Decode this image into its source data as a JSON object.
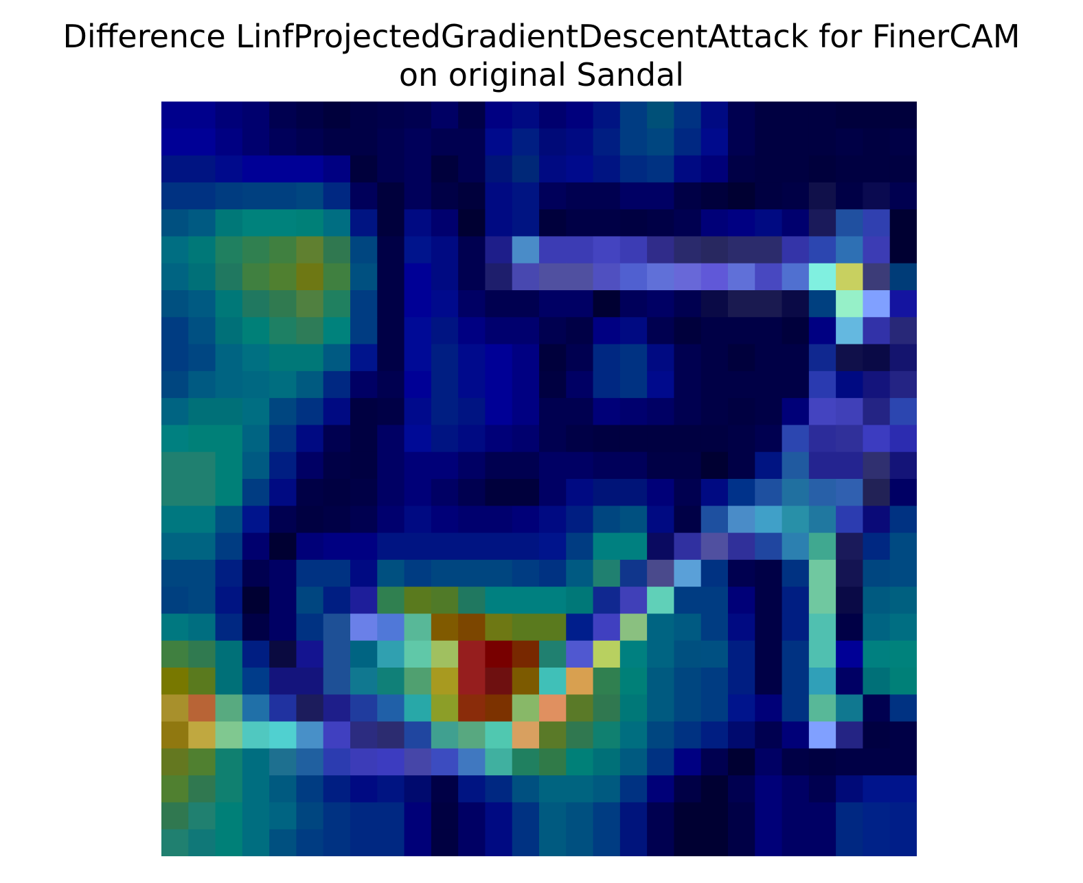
{
  "chart_data": {
    "type": "heatmap",
    "title_lines": [
      "Difference LinfProjectedGradientDescentAttack for FinerCAM",
      "on original Sandal"
    ],
    "xlabel": "",
    "ylabel": "",
    "axes_visible": false,
    "grid": false,
    "rows": 28,
    "cols": 28,
    "cell_colors": [
      [
        "#00008c",
        "#00008c",
        "#000078",
        "#00006e",
        "#000050",
        "#000046",
        "#00003c",
        "#000046",
        "#00004b",
        "#000050",
        "#000064",
        "#000046",
        "#000082",
        "#000a82",
        "#00006e",
        "#00007d",
        "#001482",
        "#003c82",
        "#005078",
        "#003282",
        "#000a82",
        "#000050",
        "#000041",
        "#000041",
        "#000041",
        "#00003c",
        "#00003c",
        "#00003c"
      ],
      [
        "#000096",
        "#000096",
        "#000082",
        "#00006e",
        "#00005a",
        "#000050",
        "#000046",
        "#000046",
        "#000050",
        "#00005a",
        "#000050",
        "#000050",
        "#000a8c",
        "#001e82",
        "#000a78",
        "#000a82",
        "#001e82",
        "#003c82",
        "#004680",
        "#002882",
        "#000a8c",
        "#000050",
        "#000041",
        "#000041",
        "#000041",
        "#000046",
        "#000041",
        "#000046"
      ],
      [
        "#001482",
        "#001482",
        "#000a8c",
        "#000096",
        "#000096",
        "#000096",
        "#000082",
        "#00003c",
        "#000050",
        "#00005a",
        "#00003c",
        "#000050",
        "#001478",
        "#002878",
        "#000a82",
        "#000a8c",
        "#001482",
        "#002a82",
        "#003282",
        "#000a82",
        "#000078",
        "#000046",
        "#000041",
        "#000041",
        "#00003c",
        "#000041",
        "#000041",
        "#000041"
      ],
      [
        "#003282",
        "#003282",
        "#003c80",
        "#004080",
        "#004080",
        "#004680",
        "#002882",
        "#00005a",
        "#00003c",
        "#00005a",
        "#000046",
        "#00003c",
        "#000a82",
        "#001482",
        "#00005a",
        "#000050",
        "#000050",
        "#000064",
        "#000064",
        "#000046",
        "#00003c",
        "#000032",
        "#000041",
        "#000046",
        "#10104a",
        "#000046",
        "#0a0a50",
        "#000050"
      ],
      [
        "#005080",
        "#005a82",
        "#007878",
        "#00827c",
        "#00827c",
        "#008078",
        "#006e82",
        "#001482",
        "#00003c",
        "#000a82",
        "#00006e",
        "#000032",
        "#000a82",
        "#001482",
        "#00003c",
        "#000046",
        "#000046",
        "#000041",
        "#000046",
        "#000050",
        "#000078",
        "#000082",
        "#000a82",
        "#00006e",
        "#1a1a5a",
        "#2050a0",
        "#3040b0",
        "#000032"
      ],
      [
        "#006e82",
        "#007878",
        "#208060",
        "#308050",
        "#408040",
        "#608030",
        "#307850",
        "#004680",
        "#000046",
        "#00148c",
        "#000a82",
        "#000050",
        "#1e1e8a",
        "#4a8cc8",
        "#3c3cb4",
        "#3c3cb4",
        "#4444c0",
        "#3c3cb4",
        "#302c8a",
        "#2a2a6c",
        "#282860",
        "#2c2c6c",
        "#2c2c6c",
        "#3434a8",
        "#2c46b0",
        "#2e70b4",
        "#3c3cb4",
        "#000032"
      ],
      [
        "#006482",
        "#007078",
        "#207860",
        "#408040",
        "#508030",
        "#6e7814",
        "#408040",
        "#005080",
        "#000046",
        "#000096",
        "#000a82",
        "#000050",
        "#1e1e6c",
        "#4848b0",
        "#5050a0",
        "#5050a0",
        "#5050c0",
        "#5060d0",
        "#6070d8",
        "#6868d8",
        "#6058d8",
        "#6070d8",
        "#4848c0",
        "#5070d0",
        "#80f0e0",
        "#c8d060",
        "#3c3c78",
        "#003c78"
      ],
      [
        "#005080",
        "#005a82",
        "#007878",
        "#207860",
        "#307a50",
        "#508040",
        "#208060",
        "#003c82",
        "#000046",
        "#000096",
        "#000a8c",
        "#000064",
        "#000050",
        "#000050",
        "#000064",
        "#000064",
        "#000032",
        "#00005a",
        "#000064",
        "#000050",
        "#0a0a46",
        "#1a1a50",
        "#1a1a50",
        "#0a0a46",
        "#004080",
        "#96f0c8",
        "#80a0ff",
        "#1414a0"
      ],
      [
        "#003c82",
        "#005082",
        "#007078",
        "#008078",
        "#1e8064",
        "#2e7c58",
        "#00827c",
        "#003c82",
        "#000046",
        "#000a96",
        "#001482",
        "#000082",
        "#00006e",
        "#00006e",
        "#000050",
        "#000046",
        "#000082",
        "#000a82",
        "#000050",
        "#00003c",
        "#000046",
        "#000046",
        "#000046",
        "#00003c",
        "#000082",
        "#64b8e0",
        "#3232a8",
        "#282878"
      ],
      [
        "#003c82",
        "#004682",
        "#006482",
        "#007082",
        "#007878",
        "#007878",
        "#005a82",
        "#00148c",
        "#000046",
        "#000a96",
        "#001e82",
        "#000a8c",
        "#000096",
        "#000082",
        "#00003c",
        "#000050",
        "#002882",
        "#003282",
        "#000a82",
        "#000050",
        "#000046",
        "#00003c",
        "#000046",
        "#000046",
        "#102890",
        "#10104a",
        "#0a0a46",
        "#14146e"
      ],
      [
        "#004680",
        "#005a82",
        "#006482",
        "#006882",
        "#006e80",
        "#005a80",
        "#002882",
        "#000064",
        "#000050",
        "#000096",
        "#001e82",
        "#000a8c",
        "#000096",
        "#000082",
        "#000041",
        "#000064",
        "#002882",
        "#003282",
        "#000a8c",
        "#000050",
        "#000046",
        "#000046",
        "#000046",
        "#000046",
        "#2a3ab0",
        "#000a82",
        "#14147c",
        "#242484"
      ],
      [
        "#006482",
        "#007078",
        "#007078",
        "#006e82",
        "#004680",
        "#003282",
        "#000a82",
        "#000041",
        "#000046",
        "#000a8c",
        "#001e82",
        "#001482",
        "#000096",
        "#000082",
        "#000050",
        "#000050",
        "#000078",
        "#00006e",
        "#000064",
        "#000050",
        "#000046",
        "#000041",
        "#000046",
        "#000078",
        "#4444c0",
        "#4040b8",
        "#242484",
        "#2c46b0"
      ],
      [
        "#008080",
        "#008078",
        "#008078",
        "#006482",
        "#003282",
        "#000a82",
        "#000050",
        "#000041",
        "#000064",
        "#000a96",
        "#001482",
        "#000a82",
        "#000078",
        "#00006e",
        "#000050",
        "#000046",
        "#000041",
        "#000041",
        "#000041",
        "#000041",
        "#000041",
        "#000046",
        "#000050",
        "#2c46b0",
        "#2c2c9a",
        "#30309a",
        "#3c3cc0",
        "#2c2cb0"
      ],
      [
        "#208070",
        "#208070",
        "#008078",
        "#005a82",
        "#001e82",
        "#000064",
        "#000046",
        "#000041",
        "#000064",
        "#000078",
        "#000078",
        "#000064",
        "#000050",
        "#000050",
        "#000064",
        "#000064",
        "#00005a",
        "#00005a",
        "#000046",
        "#000046",
        "#000032",
        "#000046",
        "#001482",
        "#205aa0",
        "#242490",
        "#242490",
        "#303070",
        "#141478"
      ],
      [
        "#208070",
        "#208070",
        "#008078",
        "#003c82",
        "#000a82",
        "#000046",
        "#000041",
        "#000046",
        "#000064",
        "#000078",
        "#000064",
        "#000050",
        "#00003c",
        "#00003c",
        "#000064",
        "#000a82",
        "#001478",
        "#001478",
        "#000078",
        "#000050",
        "#000a82",
        "#00328a",
        "#1e50a0",
        "#2070a0",
        "#2860a8",
        "#3060b0",
        "#222256",
        "#000064"
      ],
      [
        "#007880",
        "#007880",
        "#005082",
        "#00148c",
        "#000050",
        "#000041",
        "#000046",
        "#000050",
        "#00006e",
        "#000a82",
        "#000078",
        "#00006e",
        "#00006e",
        "#000078",
        "#000a82",
        "#001e82",
        "#004680",
        "#005080",
        "#000a82",
        "#000046",
        "#1e50a0",
        "#4a8cc8",
        "#40a0c8",
        "#2890a8",
        "#2078a0",
        "#2c3cb0",
        "#0a0a78",
        "#003282"
      ],
      [
        "#006482",
        "#006482",
        "#003c82",
        "#00006e",
        "#000032",
        "#000078",
        "#000082",
        "#000082",
        "#001482",
        "#001482",
        "#001482",
        "#001482",
        "#001482",
        "#001482",
        "#00148c",
        "#003c82",
        "#008080",
        "#008080",
        "#0a0a60",
        "#3030a0",
        "#5050a0",
        "#30309a",
        "#2046a0",
        "#2c80b0",
        "#40a890",
        "#1a1a5a",
        "#002882",
        "#004a82"
      ],
      [
        "#004680",
        "#004680",
        "#001e82",
        "#000050",
        "#000064",
        "#003282",
        "#003282",
        "#000a82",
        "#005080",
        "#003c82",
        "#004680",
        "#004680",
        "#004680",
        "#003c82",
        "#003282",
        "#005a82",
        "#208070",
        "#10368c",
        "#4a4a8c",
        "#5aa0d8",
        "#003282",
        "#000050",
        "#000046",
        "#003282",
        "#70c8a0",
        "#141452",
        "#004680",
        "#004a82"
      ],
      [
        "#004080",
        "#004680",
        "#001482",
        "#000032",
        "#000064",
        "#004680",
        "#001e82",
        "#1e1e9a",
        "#308050",
        "#5a7a1e",
        "#507a28",
        "#207860",
        "#008080",
        "#008080",
        "#008080",
        "#007878",
        "#102890",
        "#4040b8",
        "#60d0b8",
        "#003c82",
        "#003c82",
        "#000078",
        "#000046",
        "#001e82",
        "#70c8a0",
        "#0a0a46",
        "#005a80",
        "#006080"
      ],
      [
        "#007880",
        "#006e80",
        "#002882",
        "#000046",
        "#000064",
        "#003282",
        "#1e5096",
        "#6a80e8",
        "#5078d8",
        "#58b898",
        "#805a00",
        "#7c4600",
        "#6e7814",
        "#5a7a1e",
        "#5a7a1e",
        "#001e8c",
        "#4040c0",
        "#8ac080",
        "#006482",
        "#005a82",
        "#003c82",
        "#000a82",
        "#000046",
        "#001e82",
        "#50c0b0",
        "#000046",
        "#006482",
        "#006e82"
      ],
      [
        "#408040",
        "#307a50",
        "#007078",
        "#001e82",
        "#0a0a40",
        "#141490",
        "#1e5096",
        "#006482",
        "#30a0b0",
        "#60c8a8",
        "#a0c060",
        "#961e1e",
        "#780000",
        "#782800",
        "#208070",
        "#5058d0",
        "#b8d060",
        "#008080",
        "#006482",
        "#005080",
        "#005082",
        "#001e82",
        "#000046",
        "#003282",
        "#50c0b0",
        "#000096",
        "#008080",
        "#00827c"
      ],
      [
        "#787800",
        "#5a7a1e",
        "#007078",
        "#003c8a",
        "#14147c",
        "#14147c",
        "#1e5096",
        "#107890",
        "#108078",
        "#50a070",
        "#a89a20",
        "#961e1e",
        "#6e1010",
        "#7c5a00",
        "#40c0b8",
        "#d8a050",
        "#308050",
        "#008078",
        "#005a80",
        "#004680",
        "#003c82",
        "#001e82",
        "#000046",
        "#003282",
        "#30a0b8",
        "#000064",
        "#007078",
        "#008078"
      ],
      [
        "#a8902c",
        "#b86436",
        "#58aa80",
        "#2070a8",
        "#2032a0",
        "#1c1c5c",
        "#1e1e8a",
        "#203c9e",
        "#2060a8",
        "#28a8a8",
        "#8c9e28",
        "#8a2c0a",
        "#7c3200",
        "#88b868",
        "#e09060",
        "#5a7a28",
        "#307850",
        "#007878",
        "#005a80",
        "#004680",
        "#003c82",
        "#00148c",
        "#000078",
        "#003282",
        "#58b898",
        "#107890",
        "#000050",
        "#003282"
      ],
      [
        "#907810",
        "#c0a840",
        "#80c890",
        "#50c8c0",
        "#50d0d0",
        "#4890c8",
        "#4040c0",
        "#2c2c80",
        "#2c2c70",
        "#2046a0",
        "#40a090",
        "#58a880",
        "#50c8b0",
        "#d8a060",
        "#5a7a28",
        "#307850",
        "#108070",
        "#006e80",
        "#004680",
        "#003282",
        "#001e82",
        "#000a6e",
        "#000050",
        "#000078",
        "#80a0ff",
        "#242484",
        "#000041",
        "#000046"
      ],
      [
        "#647820",
        "#508030",
        "#108070",
        "#006e80",
        "#1e7090",
        "#2060a0",
        "#2c3cb0",
        "#3c3cb8",
        "#3c3cc0",
        "#4646a8",
        "#3c4cc0",
        "#4078c0",
        "#40b0a0",
        "#208060",
        "#307a48",
        "#008078",
        "#007078",
        "#005a80",
        "#003282",
        "#000082",
        "#000050",
        "#000032",
        "#000064",
        "#000046",
        "#000041",
        "#000046",
        "#000046",
        "#000046"
      ],
      [
        "#508030",
        "#307850",
        "#108070",
        "#006e80",
        "#005a80",
        "#003c82",
        "#001e82",
        "#000a82",
        "#001482",
        "#000a6e",
        "#000046",
        "#001482",
        "#002882",
        "#005080",
        "#006480",
        "#006480",
        "#005a80",
        "#003282",
        "#000078",
        "#000046",
        "#000032",
        "#000050",
        "#000078",
        "#000064",
        "#000050",
        "#000a78",
        "#00148c",
        "#00148c"
      ],
      [
        "#307850",
        "#208070",
        "#008078",
        "#006e80",
        "#006482",
        "#004680",
        "#003282",
        "#002882",
        "#002882",
        "#000078",
        "#000041",
        "#000064",
        "#000a82",
        "#003282",
        "#005a80",
        "#005080",
        "#003c82",
        "#00147c",
        "#000050",
        "#000032",
        "#000032",
        "#000046",
        "#000078",
        "#000064",
        "#000064",
        "#002882",
        "#002288",
        "#001e88"
      ],
      [
        "#208070",
        "#107878",
        "#008078",
        "#006e80",
        "#005080",
        "#003c82",
        "#003282",
        "#002882",
        "#002882",
        "#000078",
        "#000041",
        "#000064",
        "#000a82",
        "#003282",
        "#005a80",
        "#005080",
        "#003c82",
        "#00147c",
        "#000050",
        "#000032",
        "#000032",
        "#000046",
        "#000078",
        "#000064",
        "#000064",
        "#002882",
        "#002288",
        "#001e88"
      ]
    ]
  }
}
